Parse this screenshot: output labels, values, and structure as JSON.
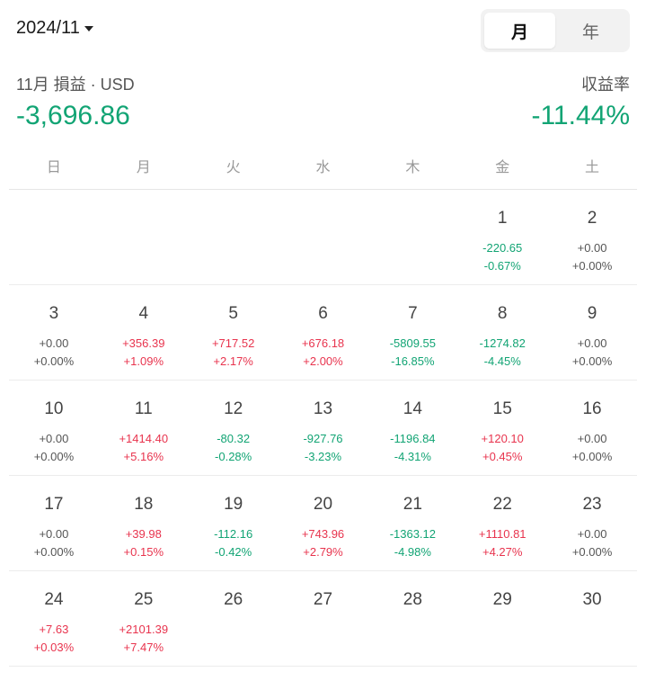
{
  "header": {
    "month": "2024/11",
    "toggle": {
      "month_label": "月",
      "year_label": "年",
      "active": "month"
    }
  },
  "summary": {
    "label": "11月 損益 · USD",
    "value": "-3,696.86",
    "rate_label": "収益率",
    "rate_value": "-11.44%"
  },
  "weekdays": [
    "日",
    "月",
    "火",
    "水",
    "木",
    "金",
    "土"
  ],
  "colors": {
    "positive": "#e8344e",
    "negative": "#12a474",
    "neutral": "#555555"
  },
  "weeks": [
    [
      {
        "day": "",
        "pnl": "",
        "pct": ""
      },
      {
        "day": "",
        "pnl": "",
        "pct": ""
      },
      {
        "day": "",
        "pnl": "",
        "pct": ""
      },
      {
        "day": "",
        "pnl": "",
        "pct": ""
      },
      {
        "day": "",
        "pnl": "",
        "pct": ""
      },
      {
        "day": "1",
        "pnl": "-220.65",
        "pct": "-0.67%"
      },
      {
        "day": "2",
        "pnl": "+0.00",
        "pct": "+0.00%"
      }
    ],
    [
      {
        "day": "3",
        "pnl": "+0.00",
        "pct": "+0.00%"
      },
      {
        "day": "4",
        "pnl": "+356.39",
        "pct": "+1.09%"
      },
      {
        "day": "5",
        "pnl": "+717.52",
        "pct": "+2.17%"
      },
      {
        "day": "6",
        "pnl": "+676.18",
        "pct": "+2.00%"
      },
      {
        "day": "7",
        "pnl": "-5809.55",
        "pct": "-16.85%"
      },
      {
        "day": "8",
        "pnl": "-1274.82",
        "pct": "-4.45%"
      },
      {
        "day": "9",
        "pnl": "+0.00",
        "pct": "+0.00%"
      }
    ],
    [
      {
        "day": "10",
        "pnl": "+0.00",
        "pct": "+0.00%"
      },
      {
        "day": "11",
        "pnl": "+1414.40",
        "pct": "+5.16%"
      },
      {
        "day": "12",
        "pnl": "-80.32",
        "pct": "-0.28%"
      },
      {
        "day": "13",
        "pnl": "-927.76",
        "pct": "-3.23%"
      },
      {
        "day": "14",
        "pnl": "-1196.84",
        "pct": "-4.31%"
      },
      {
        "day": "15",
        "pnl": "+120.10",
        "pct": "+0.45%"
      },
      {
        "day": "16",
        "pnl": "+0.00",
        "pct": "+0.00%"
      }
    ],
    [
      {
        "day": "17",
        "pnl": "+0.00",
        "pct": "+0.00%"
      },
      {
        "day": "18",
        "pnl": "+39.98",
        "pct": "+0.15%"
      },
      {
        "day": "19",
        "pnl": "-112.16",
        "pct": "-0.42%"
      },
      {
        "day": "20",
        "pnl": "+743.96",
        "pct": "+2.79%"
      },
      {
        "day": "21",
        "pnl": "-1363.12",
        "pct": "-4.98%"
      },
      {
        "day": "22",
        "pnl": "+1110.81",
        "pct": "+4.27%"
      },
      {
        "day": "23",
        "pnl": "+0.00",
        "pct": "+0.00%"
      }
    ],
    [
      {
        "day": "24",
        "pnl": "+7.63",
        "pct": "+0.03%"
      },
      {
        "day": "25",
        "pnl": "+2101.39",
        "pct": "+7.47%"
      },
      {
        "day": "26",
        "pnl": "",
        "pct": ""
      },
      {
        "day": "27",
        "pnl": "",
        "pct": ""
      },
      {
        "day": "28",
        "pnl": "",
        "pct": ""
      },
      {
        "day": "29",
        "pnl": "",
        "pct": ""
      },
      {
        "day": "30",
        "pnl": "",
        "pct": ""
      }
    ]
  ]
}
